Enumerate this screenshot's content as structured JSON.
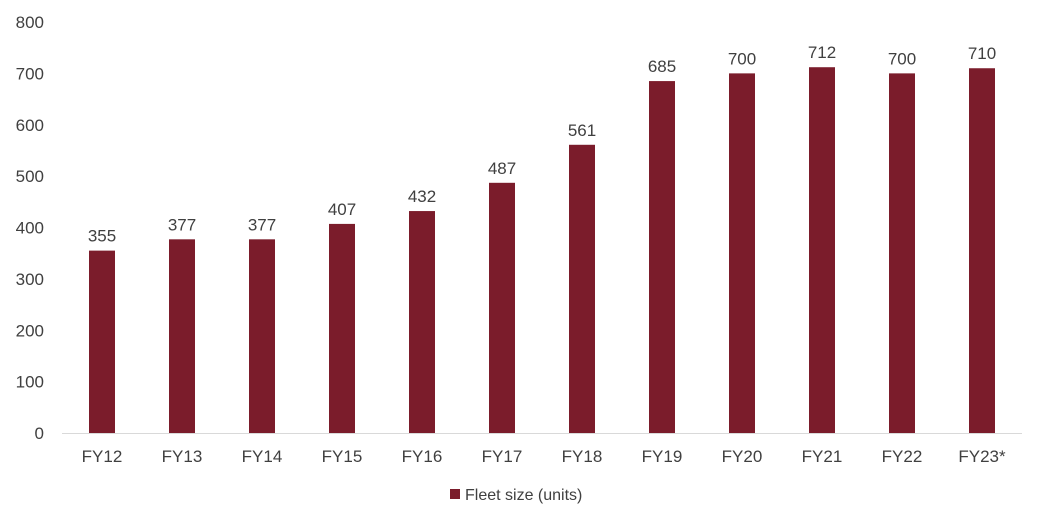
{
  "chart_data": {
    "type": "bar",
    "categories": [
      "FY12",
      "FY13",
      "FY14",
      "FY15",
      "FY16",
      "FY17",
      "FY18",
      "FY19",
      "FY20",
      "FY21",
      "FY22",
      "FY23*"
    ],
    "series": [
      {
        "name": "Fleet size (units)",
        "values": [
          355,
          377,
          377,
          407,
          432,
          487,
          561,
          685,
          700,
          712,
          700,
          710
        ],
        "color": "#7B1C2B"
      }
    ],
    "ylim": [
      0,
      800
    ],
    "yticks": [
      0,
      100,
      200,
      300,
      400,
      500,
      600,
      700,
      800
    ],
    "grid": false,
    "data_labels": true,
    "legend_position": "bottom"
  }
}
